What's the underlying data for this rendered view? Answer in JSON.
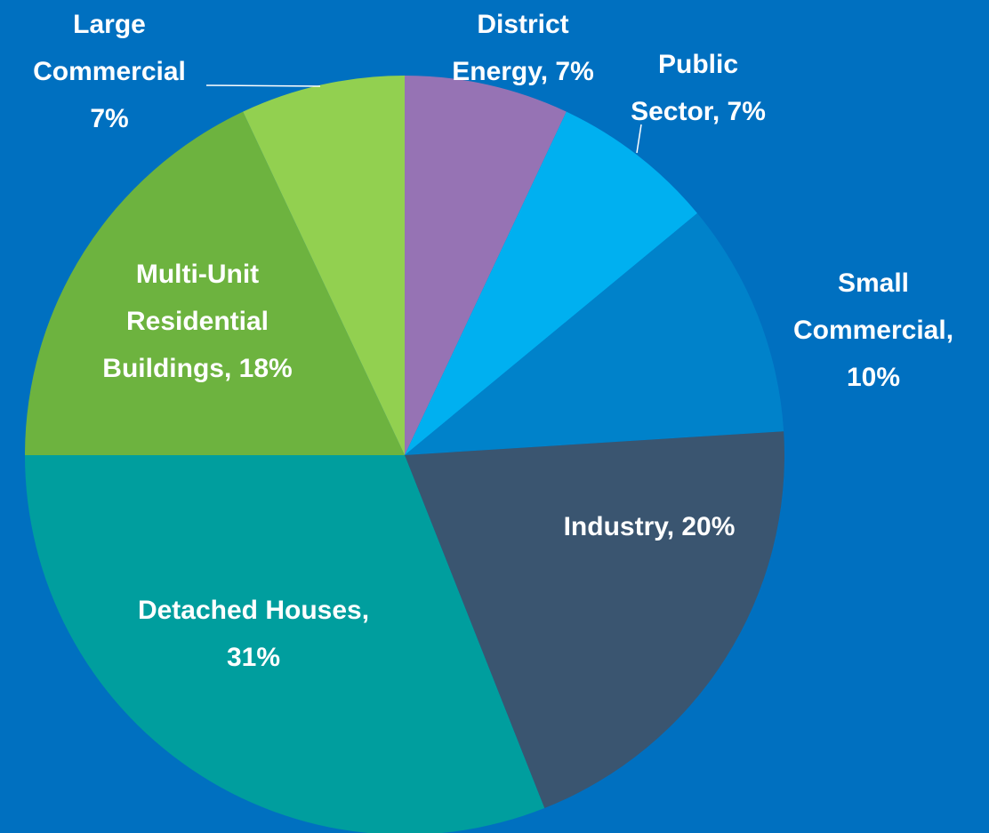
{
  "chart_data": {
    "type": "pie",
    "categories": [
      "District Energy,",
      "Public Sector,",
      "Small Commercial,",
      "Industry,",
      "Detached Houses,",
      "Multi-Unit Residential Buildings,",
      "Large Commercial"
    ],
    "values": [
      7,
      7,
      10,
      20,
      31,
      18,
      7
    ],
    "value_labels": [
      "7%",
      "7%",
      "10%",
      "20%",
      "31%",
      "18%",
      "7%"
    ],
    "colors": [
      "#9673b4",
      "#00b0f0",
      "#0082ca",
      "#3a5570",
      "#009e9e",
      "#6db33f",
      "#92d050"
    ]
  }
}
